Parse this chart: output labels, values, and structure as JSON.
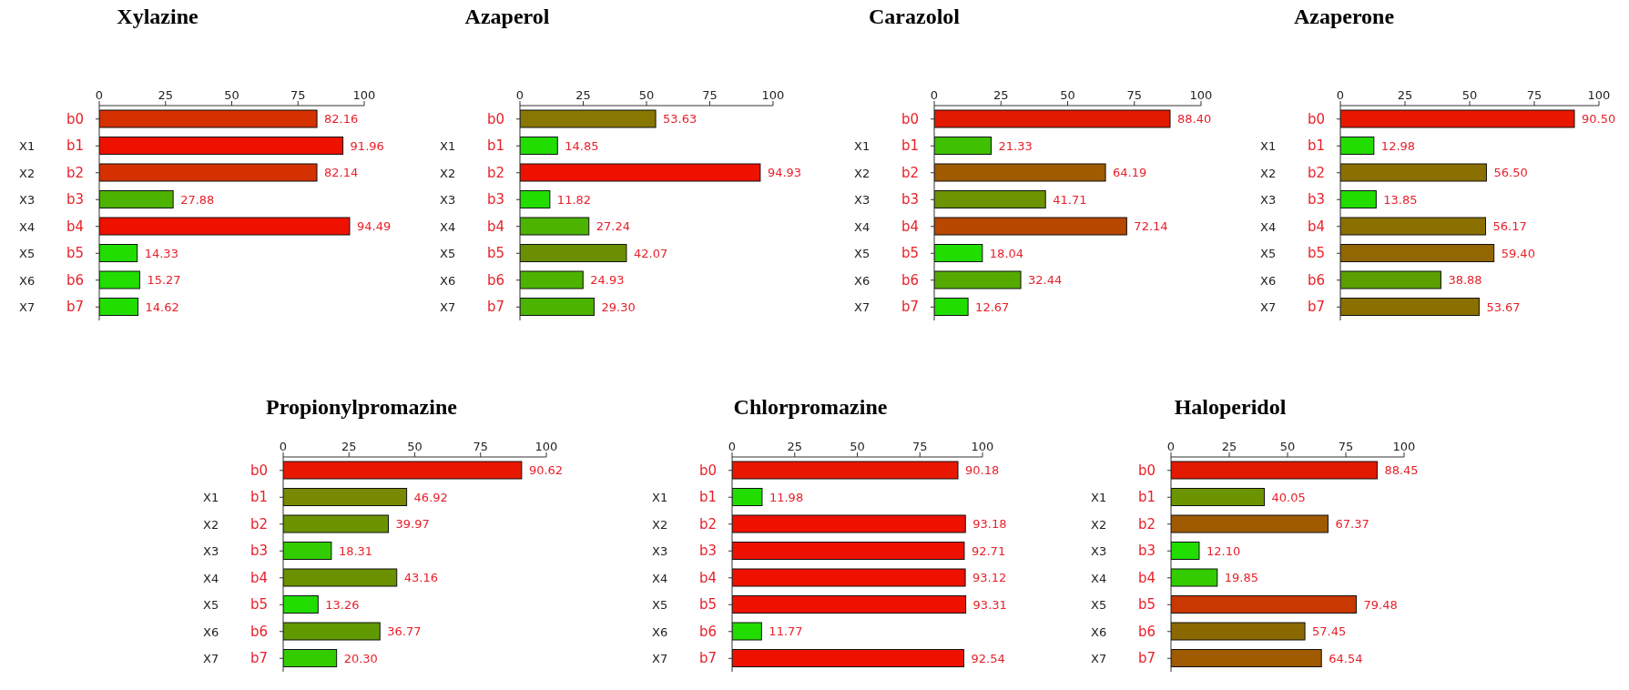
{
  "chart_data": [
    {
      "type": "bar",
      "orientation": "horizontal",
      "title": "Xylazine",
      "categories": [
        "b0",
        "b1",
        "b2",
        "b3",
        "b4",
        "b5",
        "b6",
        "b7"
      ],
      "y2_categories": [
        null,
        "X1",
        "X2",
        "X3",
        "X4",
        "X5",
        "X6",
        "X7"
      ],
      "values": [
        82.16,
        91.96,
        82.14,
        27.88,
        94.49,
        14.33,
        15.27,
        14.62
      ],
      "value_labels": [
        "82.16",
        "91.96",
        "82.14",
        "27.88",
        "94.49",
        "14.33",
        "15.27",
        "14.62"
      ],
      "colors": [
        "#d43000",
        "#ee1100",
        "#d43000",
        "#4cb300",
        "#ee1100",
        "#22dd00",
        "#22dd00",
        "#22dd00"
      ],
      "xlim": [
        0,
        100
      ],
      "xticks": [
        0,
        25,
        50,
        75,
        100
      ]
    },
    {
      "type": "bar",
      "orientation": "horizontal",
      "title": "Azaperol",
      "categories": [
        "b0",
        "b1",
        "b2",
        "b3",
        "b4",
        "b5",
        "b6",
        "b7"
      ],
      "y2_categories": [
        null,
        "X1",
        "X2",
        "X3",
        "X4",
        "X5",
        "X6",
        "X7"
      ],
      "values": [
        53.63,
        14.85,
        94.93,
        11.82,
        27.24,
        42.07,
        24.93,
        29.3
      ],
      "value_labels": [
        "53.63",
        "14.85",
        "94.93",
        "11.82",
        "27.24",
        "42.07",
        "24.93",
        "29.30"
      ],
      "colors": [
        "#887700",
        "#22dd00",
        "#ee1100",
        "#22dd00",
        "#4cb300",
        "#6b8f00",
        "#4cb300",
        "#4cb300"
      ],
      "xlim": [
        0,
        100
      ],
      "xticks": [
        0,
        25,
        50,
        75,
        100
      ]
    },
    {
      "type": "bar",
      "orientation": "horizontal",
      "title": "Carazolol",
      "categories": [
        "b0",
        "b1",
        "b2",
        "b3",
        "b4",
        "b5",
        "b6",
        "b7"
      ],
      "y2_categories": [
        null,
        "X1",
        "X2",
        "X3",
        "X4",
        "X5",
        "X6",
        "X7"
      ],
      "values": [
        88.4,
        21.33,
        64.19,
        41.71,
        72.14,
        18.04,
        32.44,
        12.67
      ],
      "value_labels": [
        "88.40",
        "21.33",
        "64.19",
        "41.71",
        "72.14",
        "18.04",
        "32.44",
        "12.67"
      ],
      "colors": [
        "#e21a00",
        "#3fc000",
        "#a05a00",
        "#6b9400",
        "#b84800",
        "#22dd00",
        "#55aa00",
        "#22dd00"
      ],
      "xlim": [
        0,
        100
      ],
      "xticks": [
        0,
        25,
        50,
        75,
        100
      ]
    },
    {
      "type": "bar",
      "orientation": "horizontal",
      "title": "Azaperone",
      "categories": [
        "b0",
        "b1",
        "b2",
        "b3",
        "b4",
        "b5",
        "b6",
        "b7"
      ],
      "y2_categories": [
        null,
        "X1",
        "X2",
        "X3",
        "X4",
        "X5",
        "X6",
        "X7"
      ],
      "values": [
        90.5,
        12.98,
        56.5,
        13.85,
        56.17,
        59.4,
        38.88,
        53.67
      ],
      "value_labels": [
        "90.50",
        "12.98",
        "56.50",
        "13.85",
        "56.17",
        "59.40",
        "38.88",
        "53.67"
      ],
      "colors": [
        "#e81800",
        "#22dd00",
        "#8a7000",
        "#22dd00",
        "#8a7000",
        "#926600",
        "#5c9f00",
        "#8a7000"
      ],
      "xlim": [
        0,
        100
      ],
      "xticks": [
        0,
        25,
        50,
        75,
        100
      ]
    },
    {
      "type": "bar",
      "orientation": "horizontal",
      "title": "Propionylpromazine",
      "categories": [
        "b0",
        "b1",
        "b2",
        "b3",
        "b4",
        "b5",
        "b6",
        "b7"
      ],
      "y2_categories": [
        null,
        "X1",
        "X2",
        "X3",
        "X4",
        "X5",
        "X6",
        "X7"
      ],
      "values": [
        90.62,
        46.92,
        39.97,
        18.31,
        43.16,
        13.26,
        36.77,
        20.3
      ],
      "value_labels": [
        "90.62",
        "46.92",
        "39.97",
        "18.31",
        "43.16",
        "13.26",
        "36.77",
        "20.30"
      ],
      "colors": [
        "#e81800",
        "#788800",
        "#6b9400",
        "#33cc00",
        "#6b9000",
        "#22dd00",
        "#609a00",
        "#33cc00"
      ],
      "xlim": [
        0,
        100
      ],
      "xticks": [
        0,
        25,
        50,
        75,
        100
      ]
    },
    {
      "type": "bar",
      "orientation": "horizontal",
      "title": "Chlorpromazine",
      "categories": [
        "b0",
        "b1",
        "b2",
        "b3",
        "b4",
        "b5",
        "b6",
        "b7"
      ],
      "y2_categories": [
        null,
        "X1",
        "X2",
        "X3",
        "X4",
        "X5",
        "X6",
        "X7"
      ],
      "values": [
        90.18,
        11.98,
        93.18,
        92.71,
        93.12,
        93.31,
        11.77,
        92.54
      ],
      "value_labels": [
        "90.18",
        "11.98",
        "93.18",
        "92.71",
        "93.12",
        "93.31",
        "11.77",
        "92.54"
      ],
      "colors": [
        "#e81800",
        "#22dd00",
        "#ee1100",
        "#ee1100",
        "#ee1100",
        "#ee1100",
        "#22dd00",
        "#ee1100"
      ],
      "xlim": [
        0,
        100
      ],
      "xticks": [
        0,
        25,
        50,
        75,
        100
      ]
    },
    {
      "type": "bar",
      "orientation": "horizontal",
      "title": "Haloperidol",
      "categories": [
        "b0",
        "b1",
        "b2",
        "b3",
        "b4",
        "b5",
        "b6",
        "b7"
      ],
      "y2_categories": [
        null,
        "X1",
        "X2",
        "X3",
        "X4",
        "X5",
        "X6",
        "X7"
      ],
      "values": [
        88.45,
        40.05,
        67.37,
        12.1,
        19.85,
        79.48,
        57.45,
        64.54
      ],
      "value_labels": [
        "88.45",
        "40.05",
        "67.37",
        "12.10",
        "19.85",
        "79.48",
        "57.45",
        "64.54"
      ],
      "colors": [
        "#e21a00",
        "#6b9400",
        "#a05a00",
        "#22dd00",
        "#33cc00",
        "#c83800",
        "#8a6a00",
        "#a05a00"
      ],
      "xlim": [
        0,
        100
      ],
      "xticks": [
        0,
        25,
        50,
        75,
        100
      ]
    }
  ]
}
